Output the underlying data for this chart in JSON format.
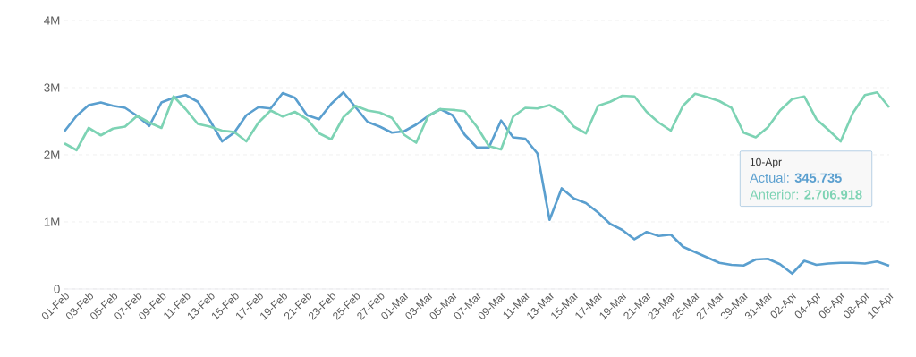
{
  "chart_data": {
    "type": "line",
    "categories": [
      "01-Feb",
      null,
      "03-Feb",
      null,
      "05-Feb",
      null,
      "07-Feb",
      null,
      "09-Feb",
      null,
      "11-Feb",
      null,
      "13-Feb",
      null,
      "15-Feb",
      null,
      "17-Feb",
      null,
      "19-Feb",
      null,
      "21-Feb",
      null,
      "23-Feb",
      null,
      "25-Feb",
      null,
      "27-Feb",
      null,
      "01-Mar",
      null,
      "03-Mar",
      null,
      "05-Mar",
      null,
      "07-Mar",
      null,
      "09-Mar",
      null,
      "11-Mar",
      null,
      "13-Mar",
      null,
      "15-Mar",
      null,
      "17-Mar",
      null,
      "19-Mar",
      null,
      "21-Mar",
      null,
      "23-Mar",
      null,
      "25-Mar",
      null,
      "27-Mar",
      null,
      "29-Mar",
      null,
      "31-Mar",
      null,
      "02-Apr",
      null,
      "04-Apr",
      null,
      "06-Apr",
      null,
      "08-Apr",
      null,
      "10-Apr"
    ],
    "series": [
      {
        "color": "#5a9fcf",
        "values": [
          2350000,
          2580000,
          2740000,
          2780000,
          2730000,
          2700000,
          2580000,
          2430000,
          2780000,
          2850000,
          2890000,
          2790000,
          2510000,
          2200000,
          2330000,
          2590000,
          2710000,
          2690000,
          2920000,
          2850000,
          2590000,
          2530000,
          2760000,
          2930000,
          2710000,
          2490000,
          2420000,
          2330000,
          2350000,
          2450000,
          2580000,
          2680000,
          2590000,
          2300000,
          2110000,
          2110000,
          2510000,
          2260000,
          2240000,
          2020000,
          1030000,
          1500000,
          1350000,
          1280000,
          1140000,
          970000,
          880000,
          740000,
          850000,
          790000,
          810000,
          630000,
          550000,
          470000,
          390000,
          360000,
          350000,
          440000,
          450000,
          370000,
          230000,
          420000,
          360000,
          380000,
          390000,
          390000,
          380000,
          410000,
          345735
        ]
      },
      {
        "color": "#7dd3b4",
        "values": [
          2170000,
          2070000,
          2400000,
          2290000,
          2390000,
          2420000,
          2580000,
          2480000,
          2400000,
          2870000,
          2680000,
          2460000,
          2420000,
          2360000,
          2340000,
          2200000,
          2480000,
          2660000,
          2570000,
          2640000,
          2530000,
          2320000,
          2230000,
          2560000,
          2730000,
          2660000,
          2630000,
          2550000,
          2300000,
          2180000,
          2580000,
          2680000,
          2670000,
          2650000,
          2420000,
          2130000,
          2080000,
          2570000,
          2700000,
          2690000,
          2740000,
          2640000,
          2420000,
          2320000,
          2730000,
          2790000,
          2880000,
          2870000,
          2640000,
          2480000,
          2360000,
          2730000,
          2910000,
          2860000,
          2800000,
          2700000,
          2330000,
          2260000,
          2410000,
          2660000,
          2830000,
          2870000,
          2530000,
          2370000,
          2200000,
          2620000,
          2890000,
          2930000,
          2706918
        ]
      }
    ],
    "ylim": [
      0,
      4000000
    ],
    "yticks": [
      0,
      {
        "value": 1000000,
        "label": "1M"
      },
      {
        "value": 2000000,
        "label": "2M"
      },
      {
        "value": 3000000,
        "label": "3M"
      },
      {
        "value": 4000000,
        "label": "4M"
      }
    ],
    "grid": "y",
    "marker": "none",
    "line_style": "solid",
    "annotations": [
      "10-Apr",
      "Actual: **345.735**",
      "Anterior: **2.706.918**"
    ]
  }
}
